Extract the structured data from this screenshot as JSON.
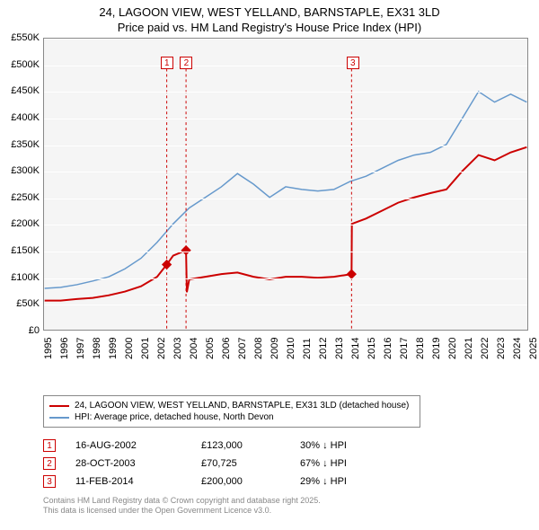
{
  "title": {
    "line1": "24, LAGOON VIEW, WEST YELLAND, BARNSTAPLE, EX31 3LD",
    "line2": "Price paid vs. HM Land Registry's House Price Index (HPI)"
  },
  "chart": {
    "type": "line",
    "background_color": "#f5f5f5",
    "grid_color": "#ffffff",
    "border_color": "#888888",
    "ylim": [
      0,
      550000
    ],
    "ytick_step": 50000,
    "ytick_labels": [
      "£0",
      "£50K",
      "£100K",
      "£150K",
      "£200K",
      "£250K",
      "£300K",
      "£350K",
      "£400K",
      "£450K",
      "£500K",
      "£550K"
    ],
    "xlim": [
      1995,
      2025
    ],
    "xtick_step": 1,
    "xtick_labels": [
      "1995",
      "1996",
      "1997",
      "1998",
      "1999",
      "2000",
      "2001",
      "2002",
      "2003",
      "2004",
      "2005",
      "2006",
      "2007",
      "2008",
      "2009",
      "2010",
      "2011",
      "2012",
      "2013",
      "2014",
      "2015",
      "2016",
      "2017",
      "2018",
      "2019",
      "2020",
      "2021",
      "2022",
      "2023",
      "2024",
      "2025"
    ],
    "series": [
      {
        "name": "price_paid",
        "label": "24, LAGOON VIEW, WEST YELLAND, BARNSTAPLE, EX31 3LD (detached house)",
        "color": "#cc0000",
        "line_width": 2,
        "x": [
          1995,
          1996,
          1997,
          1998,
          1999,
          2000,
          2001,
          2002,
          2002.6,
          2003,
          2003.8,
          2003.85,
          2004,
          2005,
          2006,
          2007,
          2008,
          2009,
          2010,
          2011,
          2012,
          2013,
          2014.1,
          2014.12,
          2015,
          2016,
          2017,
          2018,
          2019,
          2020,
          2021,
          2022,
          2023,
          2024,
          2025
        ],
        "y": [
          55000,
          55000,
          58000,
          60000,
          65000,
          72000,
          82000,
          100000,
          123000,
          140000,
          150000,
          70725,
          95000,
          100000,
          105000,
          108000,
          100000,
          95000,
          100000,
          100000,
          98000,
          100000,
          105000,
          200000,
          210000,
          225000,
          240000,
          250000,
          258000,
          265000,
          300000,
          330000,
          320000,
          335000,
          345000
        ]
      },
      {
        "name": "hpi",
        "label": "HPI: Average price, detached house, North Devon",
        "color": "#6699cc",
        "line_width": 1.5,
        "x": [
          1995,
          1996,
          1997,
          1998,
          1999,
          2000,
          2001,
          2002,
          2003,
          2004,
          2005,
          2006,
          2007,
          2008,
          2009,
          2010,
          2011,
          2012,
          2013,
          2014,
          2015,
          2016,
          2017,
          2018,
          2019,
          2020,
          2021,
          2022,
          2023,
          2024,
          2025
        ],
        "y": [
          78000,
          80000,
          85000,
          92000,
          100000,
          115000,
          135000,
          165000,
          200000,
          230000,
          250000,
          270000,
          295000,
          275000,
          250000,
          270000,
          265000,
          262000,
          265000,
          280000,
          290000,
          305000,
          320000,
          330000,
          335000,
          350000,
          400000,
          450000,
          430000,
          445000,
          430000
        ]
      }
    ],
    "markers": [
      {
        "id": "1",
        "x": 2002.6,
        "y_top": 510000
      },
      {
        "id": "2",
        "x": 2003.8,
        "y_top": 510000
      },
      {
        "id": "3",
        "x": 2014.1,
        "y_top": 510000
      }
    ],
    "marker_border_color": "#cc0000"
  },
  "legend": {
    "items": [
      {
        "color": "#cc0000",
        "label": "24, LAGOON VIEW, WEST YELLAND, BARNSTAPLE, EX31 3LD (detached house)"
      },
      {
        "color": "#6699cc",
        "label": "HPI: Average price, detached house, North Devon"
      }
    ]
  },
  "events": [
    {
      "id": "1",
      "date": "16-AUG-2002",
      "price": "£123,000",
      "delta": "30% ↓ HPI"
    },
    {
      "id": "2",
      "date": "28-OCT-2003",
      "price": "£70,725",
      "delta": "67% ↓ HPI"
    },
    {
      "id": "3",
      "date": "11-FEB-2014",
      "price": "£200,000",
      "delta": "29% ↓ HPI"
    }
  ],
  "license": {
    "line1": "Contains HM Land Registry data © Crown copyright and database right 2025.",
    "line2": "This data is licensed under the Open Government Licence v3.0."
  }
}
